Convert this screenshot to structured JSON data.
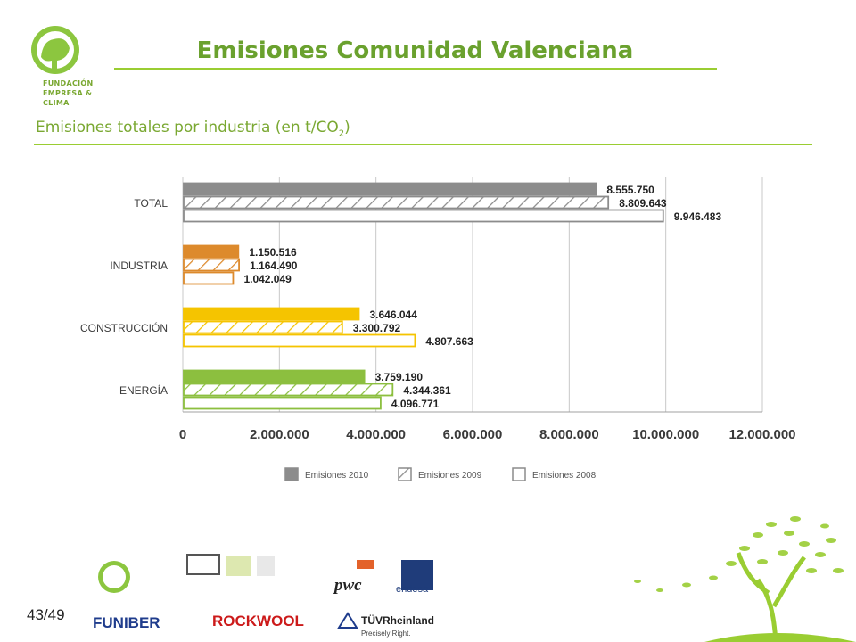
{
  "header": {
    "logo_lines": [
      "FUNDACIÓN",
      "EMPRESA &",
      "CLIMA"
    ],
    "title": "Emisiones Comunidad Valenciana",
    "subtitle_main": "Emisiones totales por industria (en t/CO",
    "subtitle_sub": "2",
    "subtitle_end": ")"
  },
  "chart_data": {
    "type": "bar",
    "orientation": "horizontal",
    "categories": [
      "TOTAL",
      "INDUSTRIA",
      "CONSTRUCCIÓN",
      "ENERGÍA"
    ],
    "series": [
      {
        "name": "Emisiones 2010",
        "values": [
          8555750,
          1150516,
          3646044,
          3759190
        ],
        "pattern": "solid"
      },
      {
        "name": "Emisiones 2009",
        "values": [
          8809643,
          1164490,
          3300792,
          4344361
        ],
        "pattern": "hatched"
      },
      {
        "name": "Emisiones 2008",
        "values": [
          9946483,
          1042049,
          4807663,
          4096771
        ],
        "pattern": "outline"
      }
    ],
    "value_labels": [
      [
        "8.555.750",
        "8.809.643",
        "9.946.483"
      ],
      [
        "1.150.516",
        "1.164.490",
        "1.042.049"
      ],
      [
        "3.646.044",
        "3.300.792",
        "4.807.663"
      ],
      [
        "3.759.190",
        "4.344.361",
        "4.096.771"
      ]
    ],
    "category_colors": [
      "#8c8c8c",
      "#dd8a2c",
      "#f5c400",
      "#8cbf3f"
    ],
    "xlim": [
      0,
      12000000
    ],
    "ticks": [
      0,
      2000000,
      4000000,
      6000000,
      8000000,
      10000000,
      12000000
    ],
    "tick_labels": [
      "0",
      "2.000.000",
      "4.000.000",
      "6.000.000",
      "8.000.000",
      "10.000.000",
      "12.000.000"
    ],
    "grid": true,
    "legend_position": "bottom"
  },
  "footer": {
    "slide_number": "43/49",
    "sponsors": [
      "FUNIBER",
      "ROCKWOOL",
      "pwc",
      "endesa",
      "TÜVRheinland",
      "Precisely Right."
    ]
  }
}
